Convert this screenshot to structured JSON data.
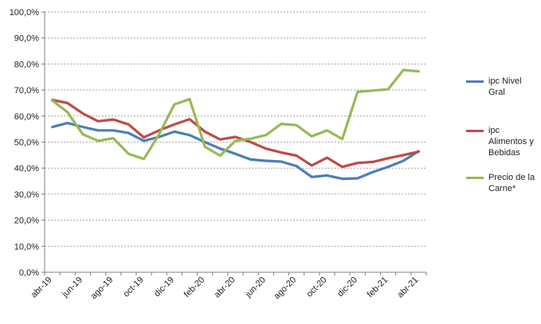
{
  "chart_data": {
    "type": "line",
    "title": "",
    "xlabel": "",
    "ylabel": "",
    "ylim": [
      0,
      100
    ],
    "y_ticks": [
      "0,0%",
      "10,0%",
      "20,0%",
      "30,0%",
      "40,0%",
      "50,0%",
      "60,0%",
      "70,0%",
      "80,0%",
      "90,0%",
      "100,0%"
    ],
    "x": [
      "abr-19",
      "may-19",
      "jun-19",
      "jul-19",
      "ago-19",
      "sep-19",
      "oct-19",
      "nov-19",
      "dic-19",
      "ene-20",
      "feb-20",
      "mar-20",
      "abr-20",
      "may-20",
      "jun-20",
      "jul-20",
      "ago-20",
      "sep-20",
      "oct-20",
      "nov-20",
      "dic-20",
      "ene-21",
      "feb-21",
      "mar-21",
      "abr-21"
    ],
    "x_tick_labels": [
      "abr-19",
      "jun-19",
      "ago-19",
      "oct-19",
      "dic-19",
      "feb-20",
      "abr-20",
      "jun-20",
      "ago-20",
      "oct-20",
      "dic-20",
      "feb-21",
      "abr-21"
    ],
    "grid": "horizontal",
    "legend_position": "right",
    "series": [
      {
        "name": "ipc Nivel Gral",
        "color": "#4a7ebb",
        "values": [
          55.8,
          57.3,
          55.8,
          54.5,
          54.5,
          53.5,
          50.5,
          52.0,
          54.0,
          52.7,
          50.0,
          47.5,
          45.5,
          43.3,
          42.8,
          42.5,
          40.8,
          36.6,
          37.2,
          35.9,
          36.1,
          38.5,
          40.5,
          42.8,
          46.5
        ]
      },
      {
        "name": "ipc Alimentos y Bebidas",
        "color": "#be4b48",
        "values": [
          66.2,
          65.0,
          61.0,
          58.0,
          58.7,
          56.8,
          51.8,
          54.5,
          56.8,
          58.8,
          54.0,
          51.0,
          52.0,
          50.0,
          47.5,
          46.0,
          44.8,
          41.0,
          44.0,
          40.5,
          42.0,
          42.4,
          43.8,
          45.0,
          46.3
        ]
      },
      {
        "name": "Precio de la Carne*",
        "color": "#98b954",
        "values": [
          66.0,
          61.5,
          53.0,
          50.5,
          51.5,
          45.5,
          43.5,
          53.0,
          64.5,
          66.5,
          48.2,
          44.8,
          50.5,
          51.3,
          52.7,
          57.0,
          56.5,
          52.2,
          54.5,
          51.2,
          69.3,
          69.8,
          70.3,
          77.7,
          77.2
        ]
      }
    ]
  }
}
